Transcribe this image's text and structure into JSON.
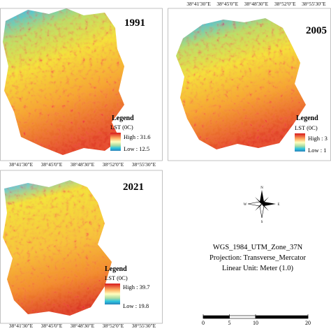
{
  "panels": [
    {
      "year": "1991",
      "coords": [
        "38°41'30\"E",
        "38°45'0\"E",
        "38°48'30\"E",
        "38°52'0\"E",
        "38°55'30\"E"
      ],
      "legend": {
        "title": "Legend",
        "unit": "LST (0C)",
        "high": "High : 31.6",
        "low": "Low : 12.5"
      }
    },
    {
      "year": "2005",
      "coords": [
        "38°41'30\"E",
        "38°45'0\"E",
        "38°48'30\"E",
        "38°52'0\"E",
        "38°55'30\"E"
      ],
      "legend": {
        "title": "Legend",
        "unit": "LST (0C)",
        "high": "High : 3",
        "low": "Low : 1"
      }
    },
    {
      "year": "2021",
      "coords": [
        "38°41'30\"E",
        "38°45'0\"E",
        "38°48'30\"E",
        "38°52'0\"E",
        "38°55'30\"E"
      ],
      "legend": {
        "title": "Legend",
        "unit": "LST (0C)",
        "high": "High : 39.7",
        "low": "Low : 19.8"
      }
    }
  ],
  "compass": {
    "n": "N",
    "e": "E",
    "s": "S",
    "w": "W"
  },
  "info": [
    "WGS_1984_UTM_Zone_37N",
    "Projection: Transverse_Mercator",
    "Linear Unit: Meter (1.0)"
  ],
  "scale_bar": {
    "ticks": [
      0,
      5,
      10,
      20
    ]
  }
}
